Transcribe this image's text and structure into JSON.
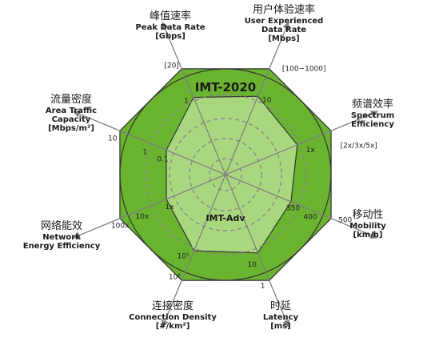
{
  "chart_data": {
    "type": "radar",
    "axes": [
      {
        "zh": "峰值速率",
        "en": [
          "Peak Data Rate",
          "[Gbps]"
        ],
        "ticks": [
          "1",
          "[20]"
        ]
      },
      {
        "zh": "用户体验速率",
        "en": [
          "User Experienced",
          "Data Rate",
          "[Mbps]"
        ],
        "ticks": [
          "10",
          "[100~1000]"
        ]
      },
      {
        "zh": "频谱效率",
        "en": [
          "Spectrum",
          "Efficiency"
        ],
        "ticks": [
          "1x",
          "[2x/3x/5x]"
        ]
      },
      {
        "zh": "移动性",
        "en": [
          "Mobility",
          "[km/h]"
        ],
        "ticks": [
          "350",
          "400",
          "500"
        ]
      },
      {
        "zh": "时延",
        "en": [
          "Latency",
          "[ms]"
        ],
        "ticks": [
          "10",
          "1"
        ]
      },
      {
        "zh": "连接密度",
        "en": [
          "Connection Density",
          "[#/km²]"
        ],
        "ticks": [
          "10⁵",
          "10⁶"
        ]
      },
      {
        "zh": "网络能效",
        "en": [
          "Network",
          "Energy Efficiency"
        ],
        "ticks": [
          "1x",
          "10x",
          "100x"
        ]
      },
      {
        "zh": "流量密度",
        "en": [
          "Area Traffic",
          "Capacity",
          "[Mbps/m²]"
        ],
        "ticks": [
          "0.1",
          "1",
          "10"
        ]
      }
    ],
    "series": [
      {
        "name": "IMT-2020",
        "color": "#6ab42f",
        "values": [
          "[20]",
          "[100~1000]",
          "[2x/3x/5x]",
          "500",
          "1",
          "10⁶",
          "100x",
          "10"
        ],
        "radius_fraction": [
          1,
          1,
          1,
          1,
          1,
          1,
          1,
          1
        ]
      },
      {
        "name": "IMT-Adv",
        "color": "#a9d77e",
        "values": [
          "1",
          "10",
          "1x",
          "350",
          "10",
          "10⁵",
          "1x",
          "0.1"
        ],
        "radius_fraction": [
          0.73,
          0.74,
          0.68,
          0.62,
          0.74,
          0.72,
          0.56,
          0.56
        ]
      }
    ],
    "grid": "dashed circles",
    "legend": "labels on chart"
  }
}
